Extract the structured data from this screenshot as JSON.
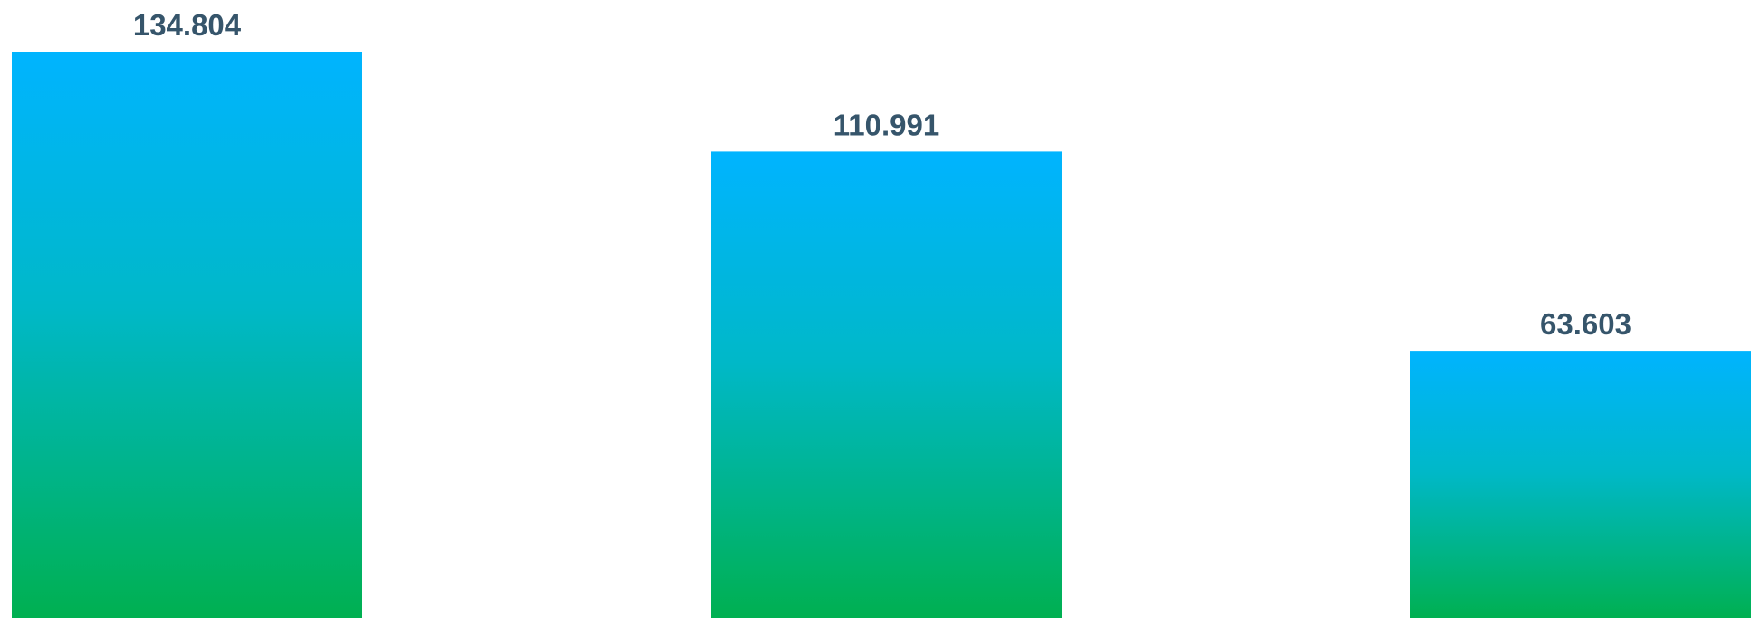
{
  "chart_data": {
    "type": "bar",
    "categories": [
      "",
      "",
      ""
    ],
    "values": [
      134.804,
      110.991,
      63.603
    ],
    "value_labels": [
      "134.804",
      "110.991",
      "63.603"
    ],
    "title": "",
    "xlabel": "",
    "ylabel": "",
    "ylim": [
      0,
      134.804
    ],
    "grid": false,
    "legend": "none",
    "colors": {
      "bar_top": "#00B4FF",
      "bar_mid": "#00B8C8",
      "bar_bottom": "#00B050",
      "label": "#36556B"
    }
  }
}
